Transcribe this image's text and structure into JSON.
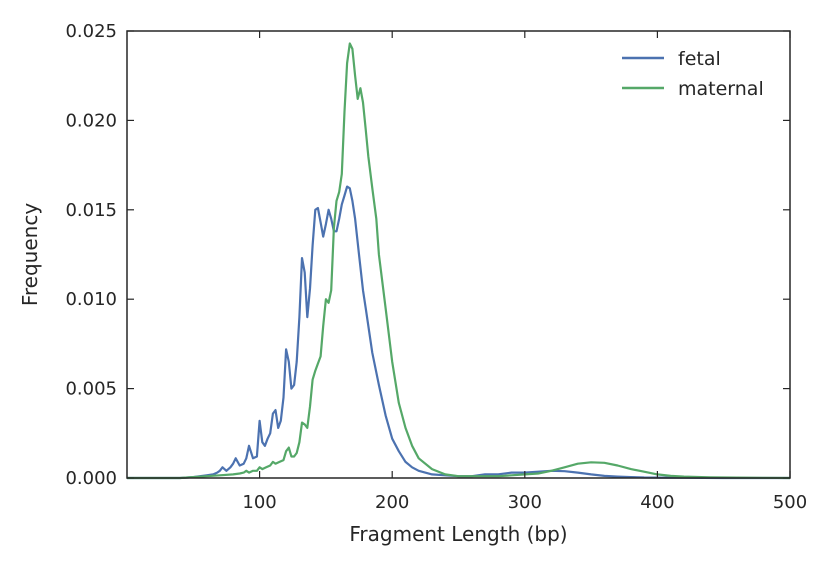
{
  "chart_data": {
    "type": "line",
    "title": "",
    "xlabel": "Fragment Length (bp)",
    "ylabel": "Frequency",
    "xlim": [
      0,
      500
    ],
    "ylim": [
      0,
      0.025
    ],
    "xticks": [
      100,
      200,
      300,
      400,
      500
    ],
    "xtick_labels": [
      "100",
      "200",
      "300",
      "400",
      "500"
    ],
    "yticks": [
      0.0,
      0.005,
      0.01,
      0.015,
      0.02,
      0.025
    ],
    "ytick_labels": [
      "0.000",
      "0.005",
      "0.010",
      "0.015",
      "0.020",
      "0.025"
    ],
    "grid": false,
    "legend": {
      "position": "top-right"
    },
    "series": [
      {
        "name": "fetal",
        "color": "#4c72b0",
        "x": [
          0,
          40,
          50,
          55,
          60,
          65,
          68,
          70,
          72,
          75,
          78,
          80,
          82,
          85,
          88,
          90,
          92,
          95,
          98,
          100,
          102,
          104,
          106,
          108,
          110,
          112,
          114,
          116,
          118,
          120,
          122,
          124,
          126,
          128,
          130,
          132,
          134,
          136,
          138,
          140,
          142,
          144,
          146,
          148,
          150,
          152,
          154,
          156,
          158,
          160,
          162,
          164,
          166,
          168,
          170,
          172,
          175,
          178,
          180,
          185,
          190,
          195,
          200,
          205,
          210,
          215,
          220,
          230,
          240,
          250,
          260,
          270,
          280,
          290,
          300,
          310,
          320,
          330,
          340,
          350,
          360,
          370,
          380,
          390,
          400,
          420,
          450,
          480,
          500
        ],
        "y": [
          0.0,
          0.0,
          5e-05,
          0.0001,
          0.00015,
          0.0002,
          0.0003,
          0.0004,
          0.0006,
          0.0004,
          0.0006,
          0.0008,
          0.0011,
          0.0007,
          0.0008,
          0.0011,
          0.0018,
          0.0011,
          0.0012,
          0.0032,
          0.002,
          0.0018,
          0.0022,
          0.0025,
          0.0036,
          0.0038,
          0.0028,
          0.0032,
          0.0045,
          0.0072,
          0.0065,
          0.005,
          0.0052,
          0.0065,
          0.009,
          0.0123,
          0.0115,
          0.009,
          0.0106,
          0.013,
          0.015,
          0.0151,
          0.0143,
          0.0135,
          0.0142,
          0.015,
          0.0145,
          0.0138,
          0.0138,
          0.0145,
          0.0153,
          0.0158,
          0.0163,
          0.0162,
          0.0155,
          0.0145,
          0.0125,
          0.0105,
          0.0095,
          0.007,
          0.0052,
          0.0035,
          0.0022,
          0.0015,
          0.0009,
          0.0006,
          0.0004,
          0.0002,
          0.00015,
          0.0001,
          0.0001,
          0.0002,
          0.0002,
          0.0003,
          0.0003,
          0.00035,
          0.0004,
          0.00038,
          0.0003,
          0.0002,
          0.00012,
          8e-05,
          5e-05,
          3e-05,
          2e-05,
          1e-05,
          0.0,
          0.0,
          0.0
        ]
      },
      {
        "name": "maternal",
        "color": "#55a868",
        "x": [
          0,
          40,
          50,
          60,
          70,
          80,
          85,
          88,
          90,
          92,
          95,
          98,
          100,
          102,
          105,
          108,
          110,
          112,
          115,
          118,
          120,
          122,
          124,
          126,
          128,
          130,
          132,
          134,
          136,
          138,
          140,
          142,
          144,
          146,
          148,
          150,
          152,
          154,
          156,
          158,
          160,
          162,
          164,
          166,
          168,
          170,
          172,
          174,
          176,
          178,
          180,
          182,
          185,
          188,
          190,
          195,
          200,
          205,
          210,
          215,
          220,
          230,
          240,
          250,
          260,
          270,
          280,
          290,
          300,
          310,
          320,
          330,
          340,
          350,
          360,
          370,
          380,
          390,
          400,
          410,
          420,
          440,
          460,
          480,
          500
        ],
        "y": [
          0.0,
          0.0,
          5e-05,
          0.0001,
          0.00015,
          0.0002,
          0.00025,
          0.0003,
          0.0004,
          0.0003,
          0.0004,
          0.0004,
          0.0006,
          0.0005,
          0.0006,
          0.0007,
          0.0009,
          0.0008,
          0.0009,
          0.001,
          0.0015,
          0.0017,
          0.0012,
          0.0012,
          0.0014,
          0.002,
          0.0031,
          0.003,
          0.0028,
          0.004,
          0.0055,
          0.006,
          0.0064,
          0.0068,
          0.0085,
          0.01,
          0.0098,
          0.0105,
          0.014,
          0.0155,
          0.016,
          0.017,
          0.0205,
          0.0232,
          0.0243,
          0.024,
          0.0225,
          0.0212,
          0.0218,
          0.021,
          0.0195,
          0.018,
          0.0162,
          0.0145,
          0.0125,
          0.0095,
          0.0065,
          0.0042,
          0.0028,
          0.0018,
          0.0011,
          0.0005,
          0.0002,
          0.0001,
          0.0001,
          0.0001,
          0.0001,
          0.00015,
          0.0002,
          0.00025,
          0.0004,
          0.0006,
          0.0008,
          0.00088,
          0.00085,
          0.0007,
          0.0005,
          0.00035,
          0.0002,
          0.00012,
          8e-05,
          4e-05,
          2e-05,
          1e-05,
          0.0
        ]
      }
    ]
  }
}
